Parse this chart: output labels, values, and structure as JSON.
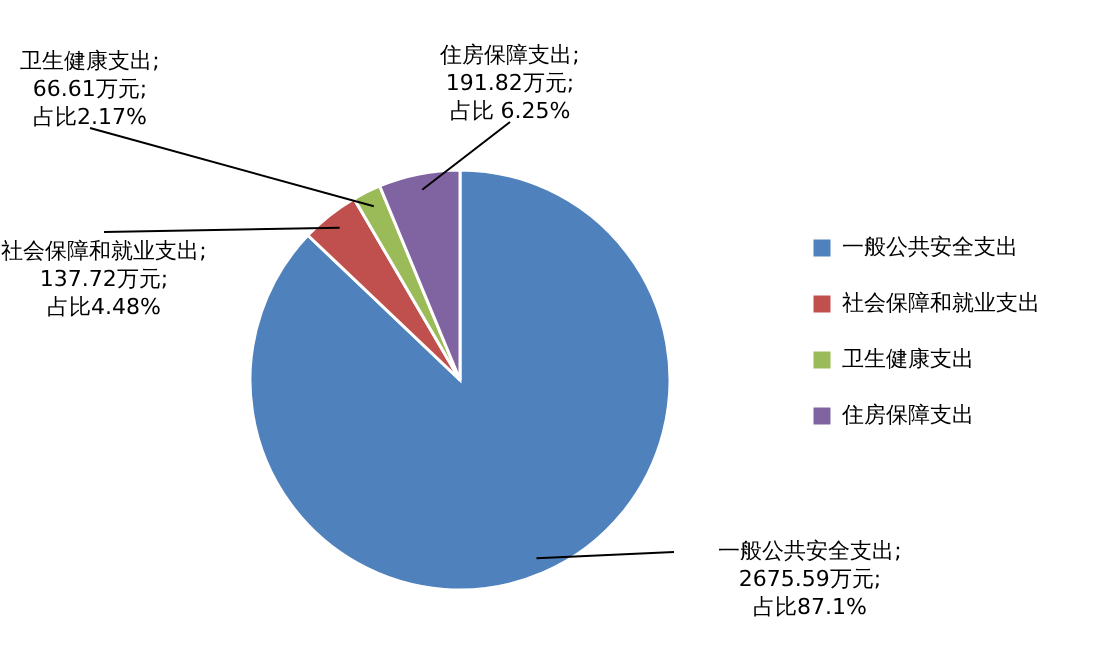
{
  "chart_data": {
    "type": "pie",
    "categories": [
      "一般公共安全支出",
      "社会保障和就业支出",
      "卫生健康支出",
      "住房保障支出"
    ],
    "values": [
      2675.59,
      137.72,
      66.61,
      191.82
    ],
    "colors": [
      "#4f81bd",
      "#c0504d",
      "#9bbb59",
      "#8064a2"
    ],
    "value_labels": [
      "一般公共安全支出; 2675.59万元; 占比87.1%",
      "社会保障和就业支出; 137.72万元; 占比4.48%",
      "卫生健康支出; 66.61万元; 占比2.17%",
      "住房保障支出; 191.82万元;占比 6.25%"
    ],
    "legend": "right"
  }
}
